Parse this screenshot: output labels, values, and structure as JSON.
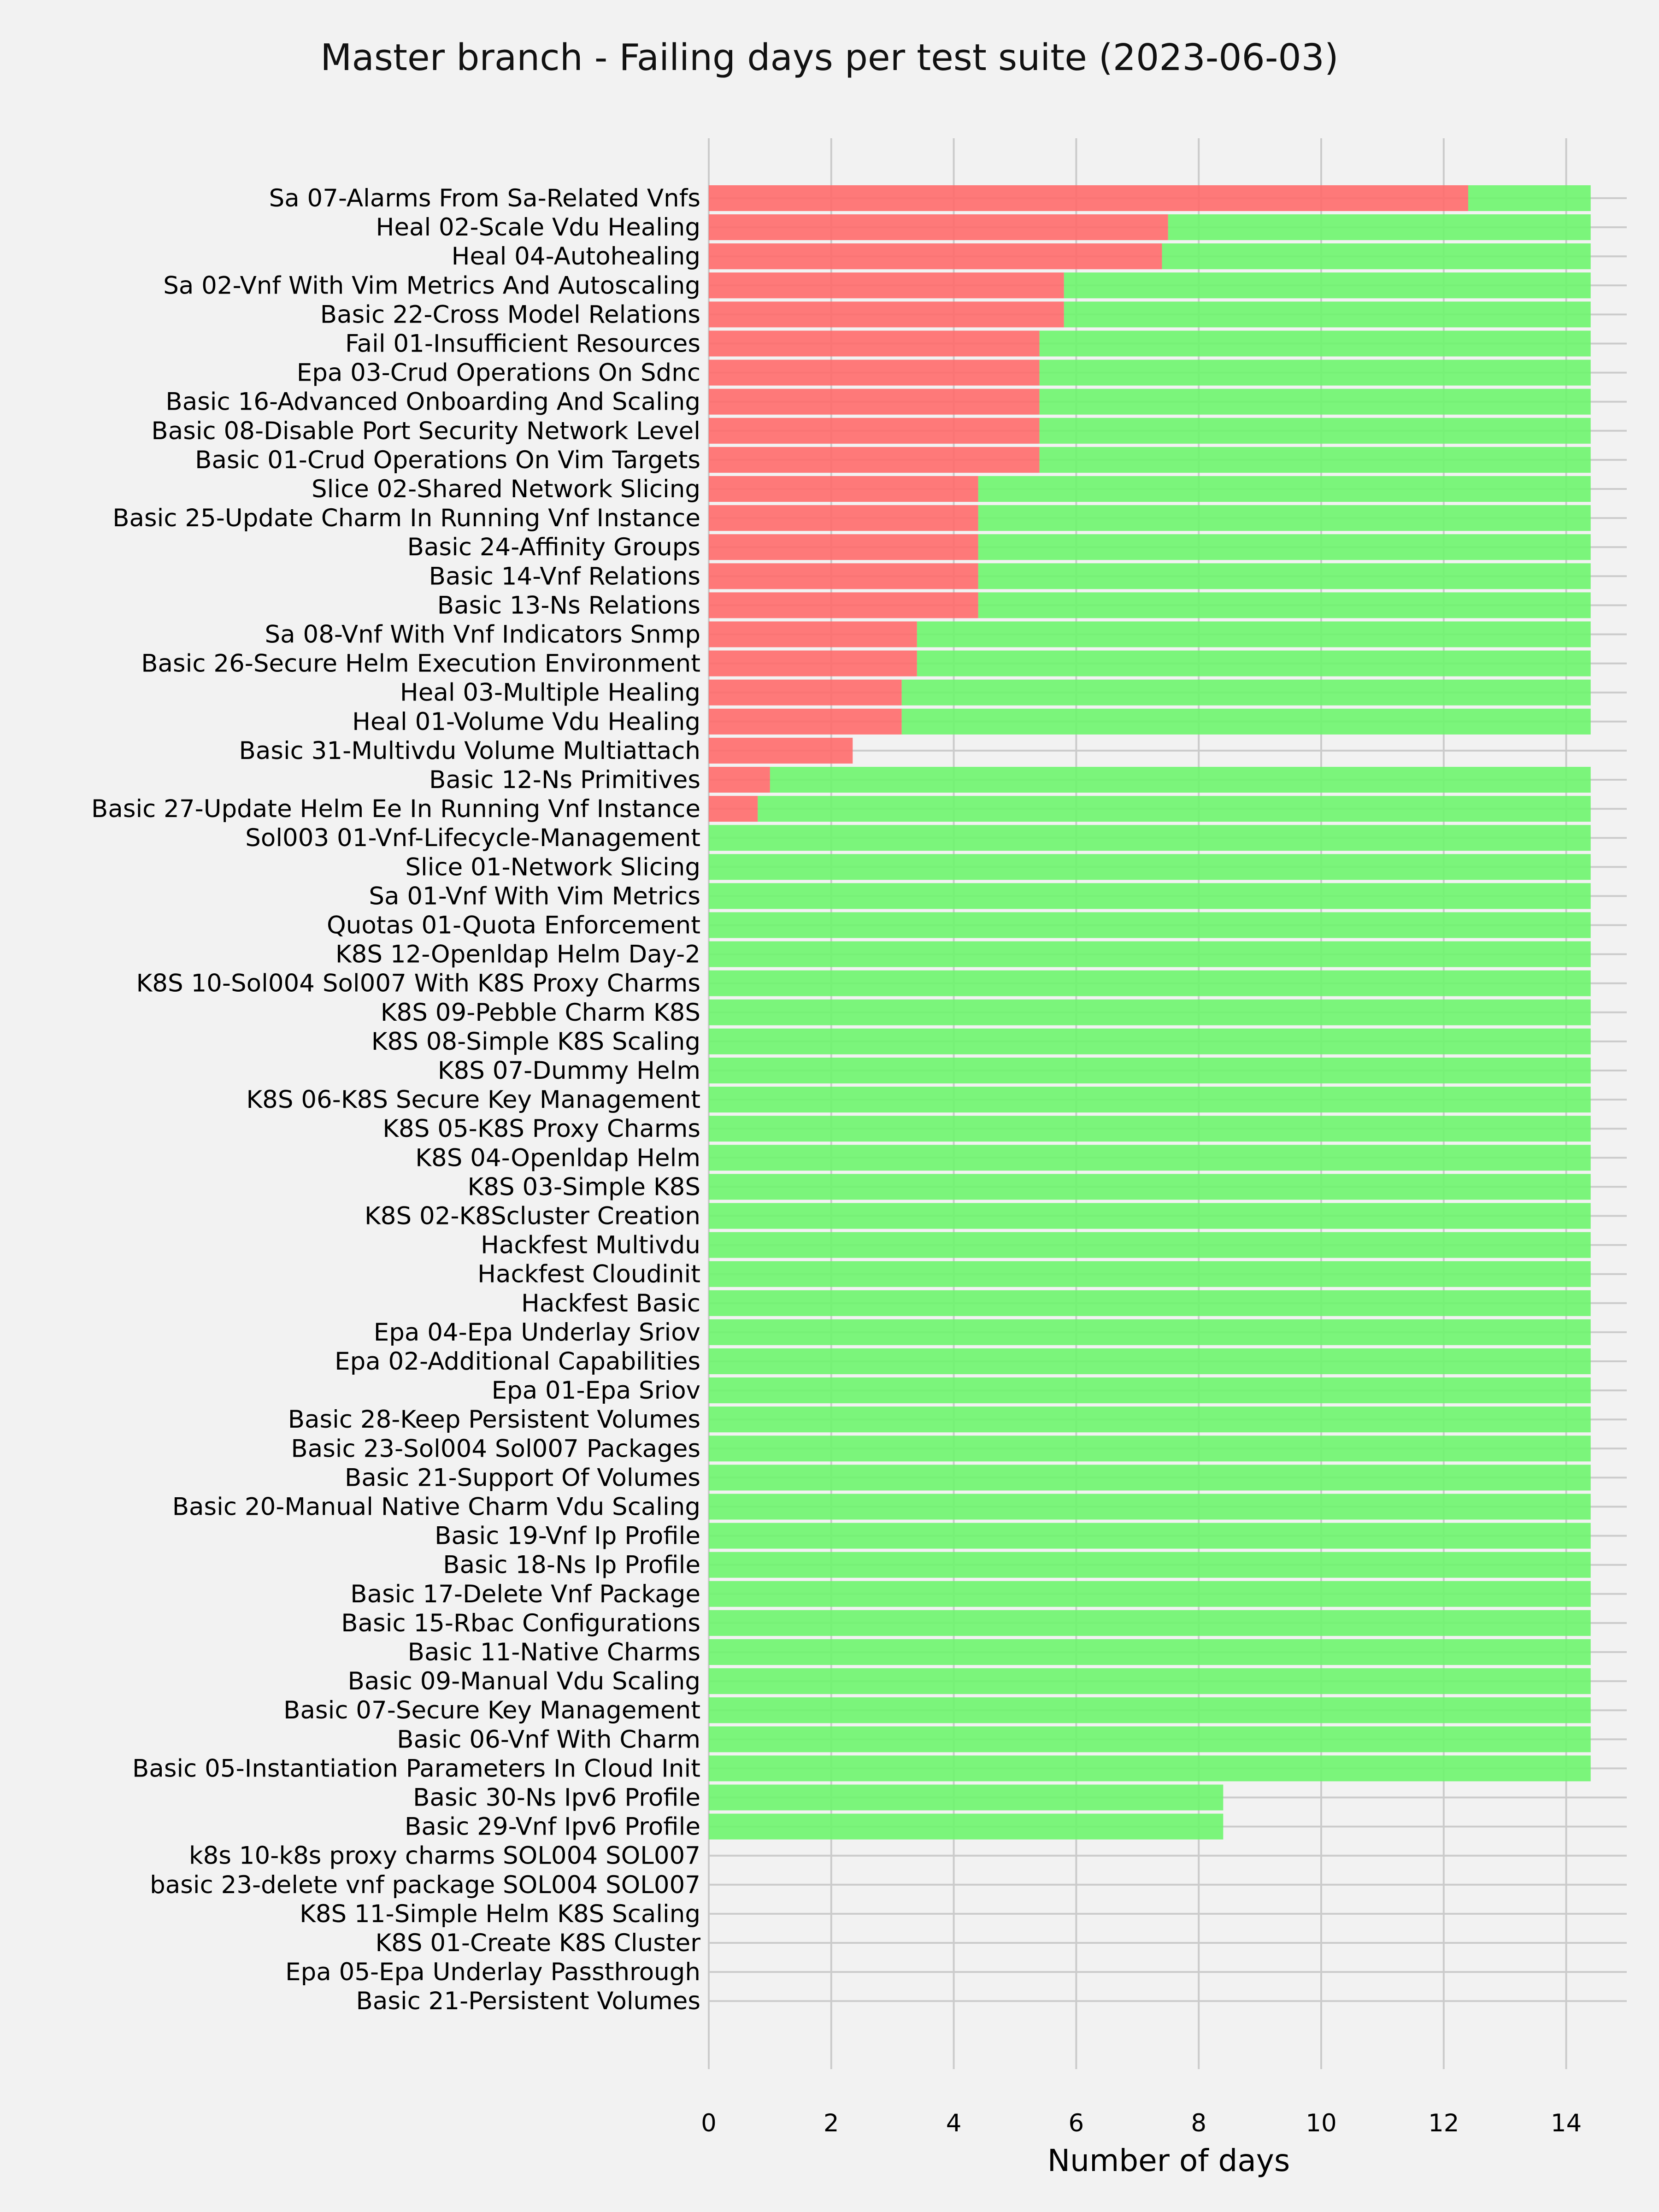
{
  "chart_data": {
    "type": "bar",
    "orientation": "horizontal",
    "stacked": true,
    "title": "Master branch - Failing days per test suite (2023-06-03)",
    "xlabel": "Number of days",
    "ylabel": "",
    "xlim": [
      0,
      14.4
    ],
    "xticks": [
      0,
      2,
      4,
      6,
      8,
      10,
      12,
      14
    ],
    "xtick_labels": [
      "0",
      "2",
      "4",
      "6",
      "8",
      "10",
      "12",
      "14"
    ],
    "grid": true,
    "colors": {
      "fail": "#ff6b6b",
      "pass": "#6ef56e",
      "background": "#f2f2f2",
      "grid": "#cbcbcb"
    },
    "categories": [
      "Sa 07-Alarms From Sa-Related Vnfs",
      "Heal 02-Scale Vdu Healing",
      "Heal 04-Autohealing",
      "Sa 02-Vnf With Vim Metrics And Autoscaling",
      "Basic 22-Cross Model Relations",
      "Fail 01-Insufficient Resources",
      "Epa 03-Crud Operations On Sdnc",
      "Basic 16-Advanced Onboarding And Scaling",
      "Basic 08-Disable Port Security Network Level",
      "Basic 01-Crud Operations On Vim Targets",
      "Slice 02-Shared Network Slicing",
      "Basic 25-Update Charm In Running Vnf Instance",
      "Basic 24-Affinity Groups",
      "Basic 14-Vnf Relations",
      "Basic 13-Ns Relations",
      "Sa 08-Vnf With Vnf Indicators Snmp",
      "Basic 26-Secure Helm Execution Environment",
      "Heal 03-Multiple Healing",
      "Heal 01-Volume Vdu Healing",
      "Basic 31-Multivdu Volume Multiattach",
      "Basic 12-Ns Primitives",
      "Basic 27-Update Helm Ee In Running Vnf Instance",
      "Sol003 01-Vnf-Lifecycle-Management",
      "Slice 01-Network Slicing",
      "Sa 01-Vnf With Vim Metrics",
      "Quotas 01-Quota Enforcement",
      "K8S 12-Openldap Helm Day-2",
      "K8S 10-Sol004 Sol007 With K8S Proxy Charms",
      "K8S 09-Pebble Charm K8S",
      "K8S 08-Simple K8S Scaling",
      "K8S 07-Dummy Helm",
      "K8S 06-K8S Secure Key Management",
      "K8S 05-K8S Proxy Charms",
      "K8S 04-Openldap Helm",
      "K8S 03-Simple K8S",
      "K8S 02-K8Scluster Creation",
      "Hackfest Multivdu",
      "Hackfest Cloudinit",
      "Hackfest Basic",
      "Epa 04-Epa Underlay Sriov",
      "Epa 02-Additional Capabilities",
      "Epa 01-Epa Sriov",
      "Basic 28-Keep Persistent Volumes",
      "Basic 23-Sol004 Sol007 Packages",
      "Basic 21-Support Of Volumes",
      "Basic 20-Manual Native Charm Vdu Scaling",
      "Basic 19-Vnf Ip Profile",
      "Basic 18-Ns Ip Profile",
      "Basic 17-Delete Vnf Package",
      "Basic 15-Rbac Configurations",
      "Basic 11-Native Charms",
      "Basic 09-Manual Vdu Scaling",
      "Basic 07-Secure Key Management",
      "Basic 06-Vnf With Charm",
      "Basic 05-Instantiation Parameters In Cloud Init",
      "Basic 30-Ns Ipv6 Profile",
      "Basic 29-Vnf Ipv6 Profile",
      "k8s 10-k8s proxy charms SOL004 SOL007",
      "basic 23-delete vnf package SOL004 SOL007",
      "K8S 11-Simple Helm K8S Scaling",
      "K8S 01-Create K8S Cluster",
      "Epa 05-Epa Underlay Passthrough",
      "Basic 21-Persistent Volumes"
    ],
    "series": [
      {
        "key": "fail",
        "values": [
          12.4,
          7.5,
          7.4,
          5.8,
          5.8,
          5.4,
          5.4,
          5.4,
          5.4,
          5.4,
          4.4,
          4.4,
          4.4,
          4.4,
          4.4,
          3.4,
          3.4,
          3.15,
          3.15,
          2.35,
          1.0,
          0.8,
          0,
          0,
          0,
          0,
          0,
          0,
          0,
          0,
          0,
          0,
          0,
          0,
          0,
          0,
          0,
          0,
          0,
          0,
          0,
          0,
          0,
          0,
          0,
          0,
          0,
          0,
          0,
          0,
          0,
          0,
          0,
          0,
          0,
          0,
          0,
          0,
          0,
          0,
          0,
          0,
          0
        ]
      },
      {
        "key": "pass",
        "values": [
          2.0,
          6.9,
          7.0,
          8.6,
          8.6,
          9.0,
          9.0,
          9.0,
          9.0,
          9.0,
          10.0,
          10.0,
          10.0,
          10.0,
          10.0,
          11.0,
          11.0,
          11.25,
          11.25,
          0,
          13.4,
          13.6,
          14.4,
          14.4,
          14.4,
          14.4,
          14.4,
          14.4,
          14.4,
          14.4,
          14.4,
          14.4,
          14.4,
          14.4,
          14.4,
          14.4,
          14.4,
          14.4,
          14.4,
          14.4,
          14.4,
          14.4,
          14.4,
          14.4,
          14.4,
          14.4,
          14.4,
          14.4,
          14.4,
          14.4,
          14.4,
          14.4,
          14.4,
          14.4,
          14.4,
          8.4,
          8.4,
          0,
          0,
          0,
          0,
          0,
          0
        ]
      }
    ]
  }
}
